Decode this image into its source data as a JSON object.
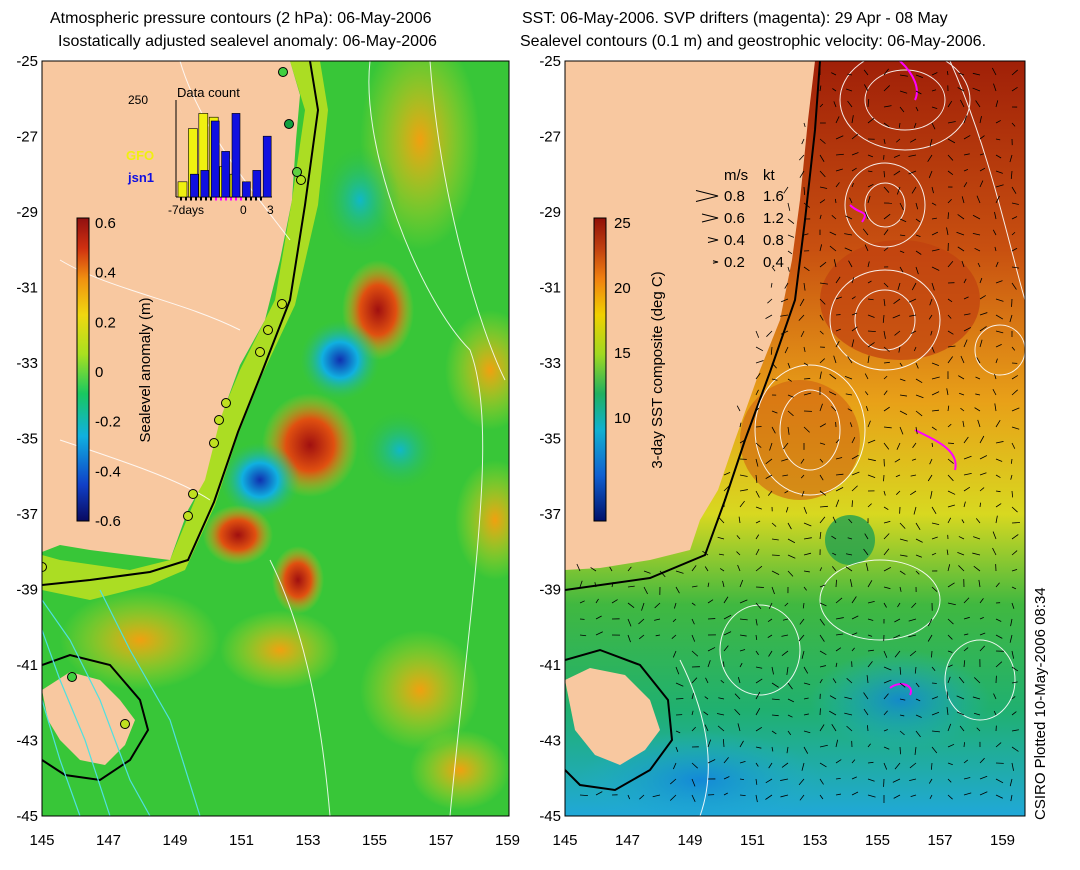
{
  "left_panel": {
    "title_line1": "Atmospheric pressure contours (2 hPa): 06-May-2006",
    "title_line2": "Isostatically adjusted sealevel anomaly: 06-May-2006",
    "colorbar": {
      "label": "Sealevel anomaly (m)",
      "ticks": [
        "0.6",
        "0.4",
        "0.2",
        "0",
        "-0.2",
        "-0.4",
        "-0.6"
      ],
      "colors": [
        "#0a0a60",
        "#1040c8",
        "#10b0e0",
        "#18c860",
        "#a8e020",
        "#f0d810",
        "#f09010",
        "#d03010",
        "#901010"
      ]
    },
    "inset": {
      "title": "Data count",
      "ymax_label": "250",
      "series": [
        {
          "name": "GFO",
          "color": "#f0f010"
        },
        {
          "name": "jsn1",
          "color": "#1010e0"
        }
      ],
      "xticks": [
        "-7days",
        "0",
        "3"
      ],
      "bars_gfo": [
        40,
        180,
        220,
        210,
        80,
        60,
        0,
        0,
        0
      ],
      "bars_jsn1": [
        0,
        60,
        70,
        200,
        120,
        220,
        40,
        70,
        160
      ]
    }
  },
  "right_panel": {
    "title_line1": "SST: 06-May-2006. SVP drifters (magenta): 29 Apr - 08 May",
    "title_line2": "Sealevel contours (0.1 m) and geostrophic velocity: 06-May-2006.",
    "colorbar": {
      "label": "3-day SST composite (deg C)",
      "ticks": [
        "25",
        "20",
        "15",
        "10"
      ],
      "colors": [
        "#00106a",
        "#1060d0",
        "#10b0d0",
        "#20b060",
        "#a0d820",
        "#f0d000",
        "#f08010",
        "#c04010",
        "#901008"
      ]
    },
    "velocity_legend": {
      "header_ms": "m/s",
      "header_kt": "kt",
      "rows": [
        {
          "ms": "0.8",
          "kt": "1.6"
        },
        {
          "ms": "0.6",
          "kt": "1.2"
        },
        {
          "ms": "0.4",
          "kt": "0.8"
        },
        {
          "ms": "0.2",
          "kt": "0.4"
        }
      ]
    }
  },
  "axes": {
    "y_labels": [
      "-25",
      "-27",
      "-29",
      "-31",
      "-33",
      "-35",
      "-37",
      "-39",
      "-41",
      "-43",
      "-45"
    ],
    "x_labels": [
      "145",
      "147",
      "149",
      "151",
      "153",
      "155",
      "157",
      "159"
    ]
  },
  "colors": {
    "land": "#f8c8a0",
    "ocean_green": "#30c030",
    "ocean_yellow": "#d8e820",
    "drifter": "#ff00ff",
    "contour": "#ffffff"
  },
  "credit": "CSIRO Plotted 10-May-2006 08:34"
}
